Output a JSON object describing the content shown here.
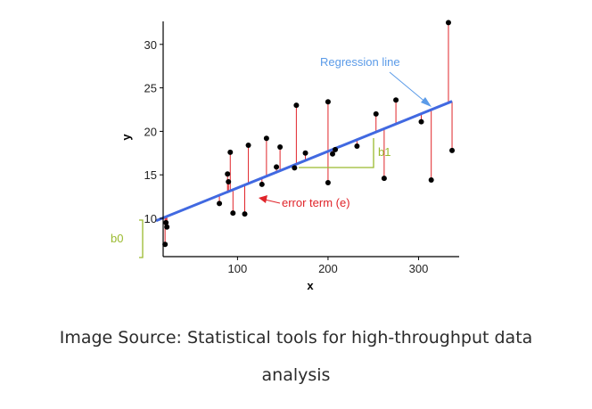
{
  "chart_data": {
    "type": "scatter",
    "xlabel": "x",
    "ylabel": "y",
    "xlim": [
      10,
      337
    ],
    "ylim": [
      5.5,
      32.5
    ],
    "xticks": [
      100,
      200,
      300
    ],
    "yticks": [
      10,
      15,
      20,
      25,
      30
    ],
    "grid": false,
    "points": [
      {
        "x": 20,
        "y": 7.0
      },
      {
        "x": 21,
        "y": 9.5
      },
      {
        "x": 22,
        "y": 9.0
      },
      {
        "x": 80,
        "y": 11.7
      },
      {
        "x": 89,
        "y": 15.1
      },
      {
        "x": 90,
        "y": 14.2
      },
      {
        "x": 92,
        "y": 17.6
      },
      {
        "x": 95,
        "y": 10.6
      },
      {
        "x": 108,
        "y": 10.5
      },
      {
        "x": 112,
        "y": 18.4
      },
      {
        "x": 127,
        "y": 13.9
      },
      {
        "x": 132,
        "y": 19.2
      },
      {
        "x": 143,
        "y": 15.9
      },
      {
        "x": 147,
        "y": 18.2
      },
      {
        "x": 163,
        "y": 15.8
      },
      {
        "x": 165,
        "y": 23.0
      },
      {
        "x": 175,
        "y": 17.5
      },
      {
        "x": 200,
        "y": 14.1
      },
      {
        "x": 200,
        "y": 23.4
      },
      {
        "x": 205,
        "y": 17.4
      },
      {
        "x": 208,
        "y": 17.9
      },
      {
        "x": 232,
        "y": 18.3
      },
      {
        "x": 253,
        "y": 22.0
      },
      {
        "x": 262,
        "y": 14.6
      },
      {
        "x": 275,
        "y": 23.6
      },
      {
        "x": 303,
        "y": 21.1
      },
      {
        "x": 314,
        "y": 14.4
      },
      {
        "x": 333,
        "y": 32.5
      },
      {
        "x": 337,
        "y": 17.8
      }
    ],
    "regression": {
      "intercept": 9.3,
      "slope": 0.042,
      "color": "#4169e1"
    },
    "residual_color": "#e0242a",
    "annotation_color": "#9aba2e",
    "annotations": {
      "regression_label": "Regression line",
      "regression_label_color": "#5b9be8",
      "error_label": "error term (e)",
      "error_label_color": "#e0242a",
      "slope_label": "b1",
      "intercept_label": "b0"
    }
  },
  "caption": {
    "line1": "Image Source: Statistical tools for high-throughput data",
    "line2": "analysis"
  }
}
